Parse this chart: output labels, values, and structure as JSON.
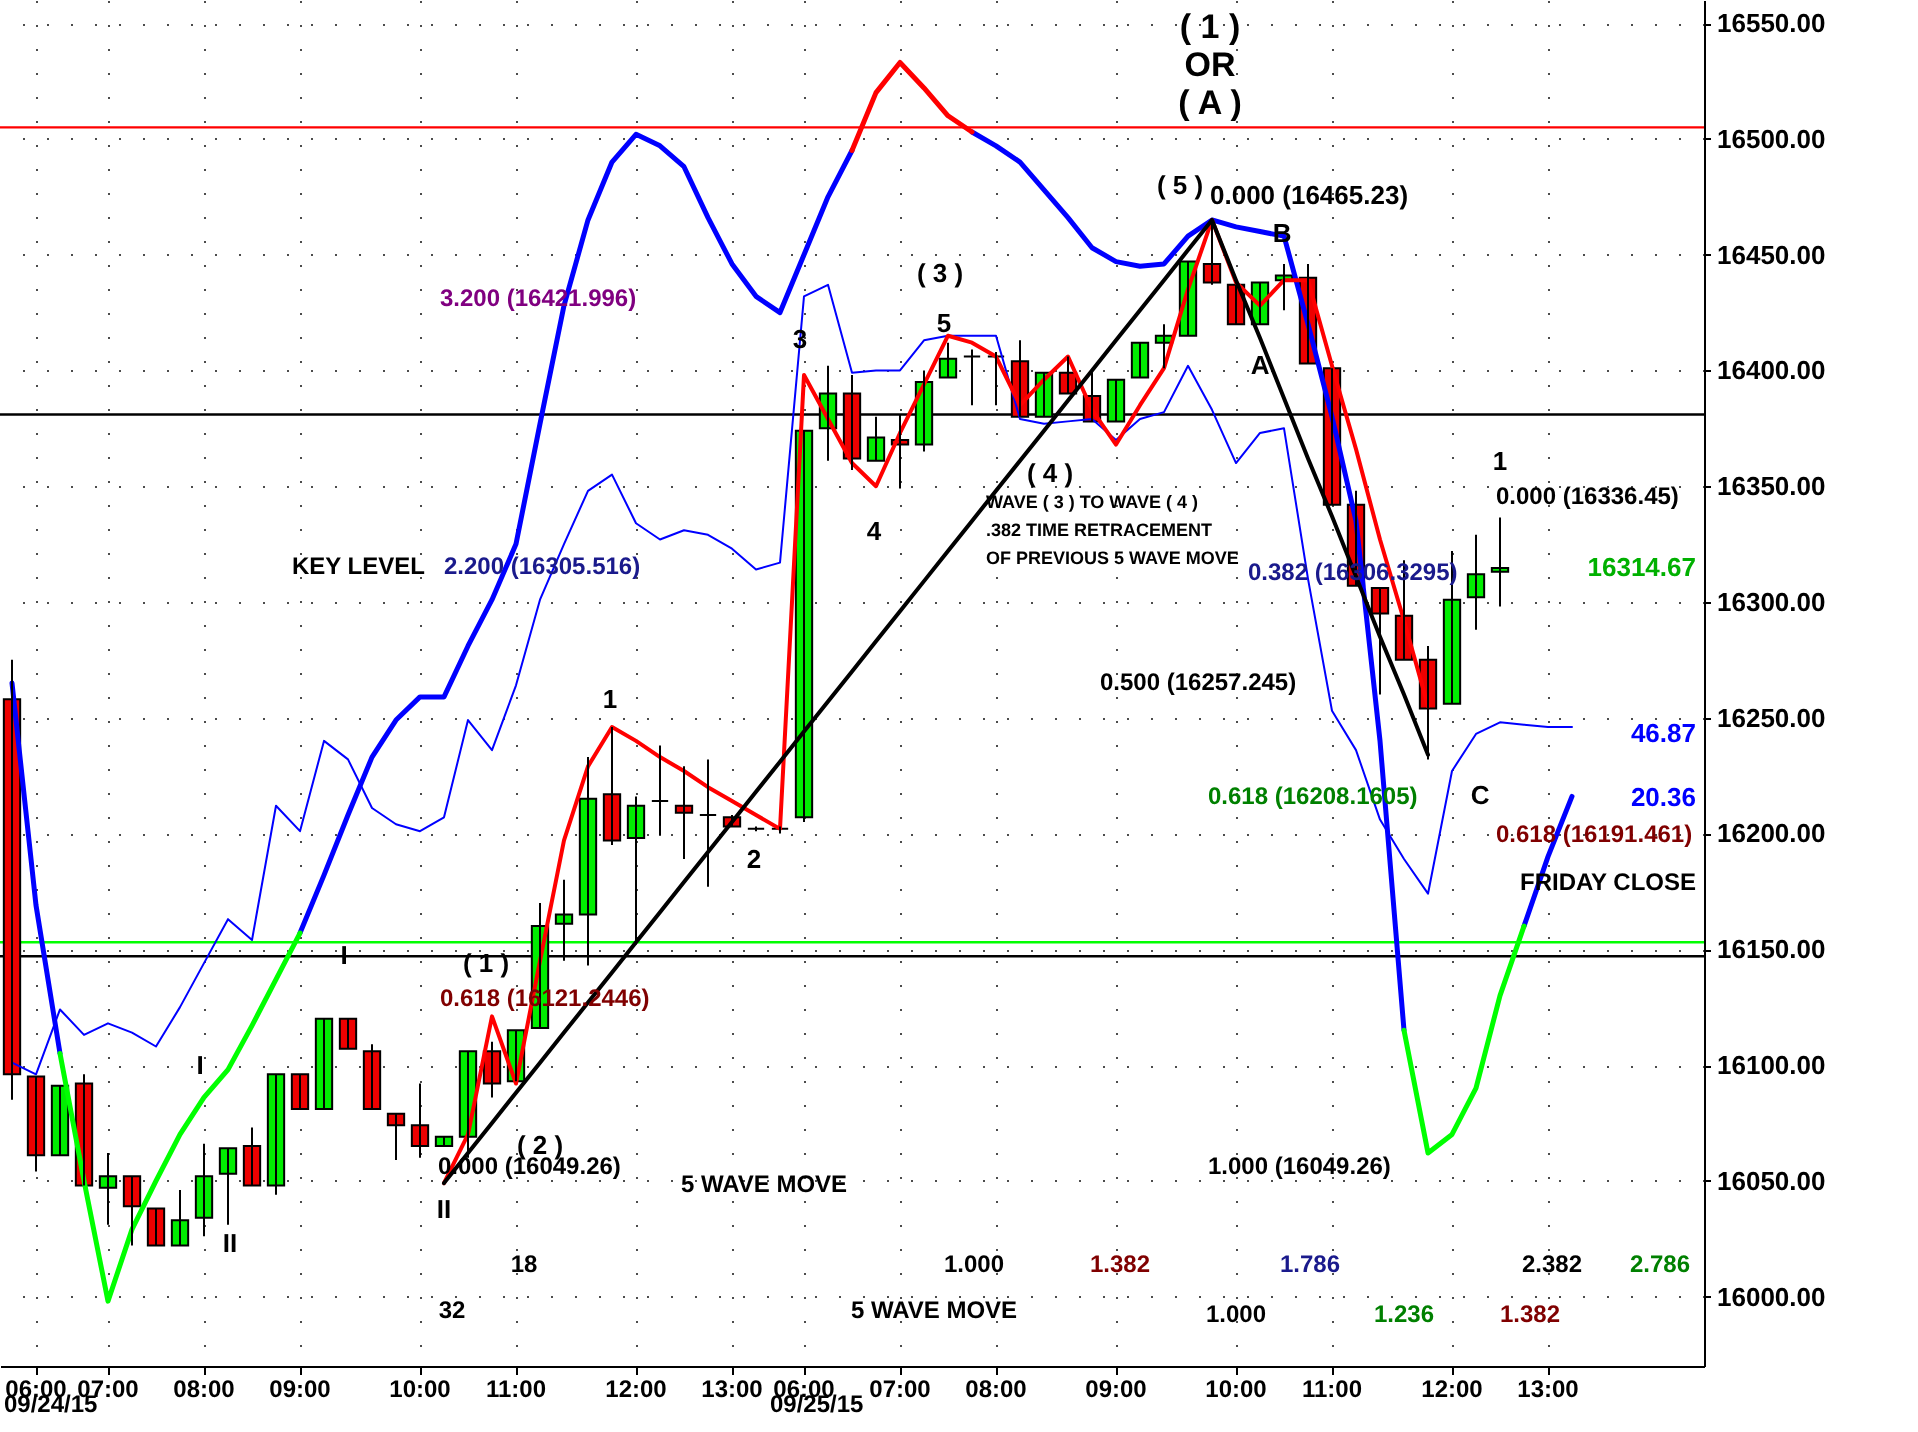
{
  "chart_data": {
    "type": "candlestick",
    "categories": [
      null,
      "06:00",
      null,
      null,
      "07:00",
      null,
      null,
      null,
      "08:00",
      null,
      null,
      null,
      "09:00",
      null,
      null,
      null,
      null,
      "10:00",
      null,
      null,
      null,
      "11:00",
      null,
      null,
      null,
      null,
      "12:00",
      null,
      null,
      null,
      "13:00",
      null,
      null,
      "06:00",
      null,
      null,
      null,
      "07:00",
      null,
      null,
      null,
      "08:00",
      null,
      null,
      null,
      null,
      "09:00",
      null,
      null,
      null,
      null,
      "10:00",
      null,
      null,
      null,
      "11:00",
      null,
      null,
      null,
      null,
      "12:00",
      null,
      null,
      null,
      "13:00",
      null,
      null,
      null,
      null,
      null,
      null
    ],
    "ohlc": [
      [
        16258,
        16275,
        16085,
        16096
      ],
      [
        16095,
        16095,
        16054,
        16061
      ],
      [
        16061,
        16091,
        16061,
        16091
      ],
      [
        16092,
        16096,
        16048,
        16048
      ],
      [
        16047,
        16062,
        16031,
        16052
      ],
      [
        16052,
        16052,
        16022,
        16039
      ],
      [
        16038,
        16038,
        16022,
        16022
      ],
      [
        16022,
        16046,
        16022,
        16033
      ],
      [
        16034,
        16066,
        16026,
        16052
      ],
      [
        16053,
        16064,
        16031,
        16064
      ],
      [
        16065,
        16073,
        16048,
        16048
      ],
      [
        16048,
        16096,
        16044,
        16096
      ],
      [
        16096,
        16096,
        16081,
        16081
      ],
      [
        16081,
        16120,
        16081,
        16120
      ],
      [
        16120,
        16120,
        16107,
        16107
      ],
      [
        16106,
        16109,
        16081,
        16081
      ],
      [
        16079,
        16079,
        16059,
        16074
      ],
      [
        16074,
        16092,
        16060,
        16065
      ],
      [
        16065,
        16069,
        16065,
        16069
      ],
      [
        16069,
        16106,
        16060,
        16106
      ],
      [
        16106,
        16110,
        16086,
        16092
      ],
      [
        16093,
        16115,
        16093,
        16115
      ],
      [
        16116,
        16170,
        16116,
        16160
      ],
      [
        16161,
        16180,
        16145,
        16165
      ],
      [
        16165,
        16233,
        16143,
        16215
      ],
      [
        16217,
        16246,
        16195,
        16197
      ],
      [
        16198,
        16216,
        16152,
        16212
      ],
      [
        16214,
        16238,
        16199,
        16214
      ],
      [
        16212,
        16229,
        16189,
        16209
      ],
      [
        16208,
        16232,
        16177,
        16208
      ],
      [
        16207,
        16208,
        16203,
        16203
      ],
      [
        16202,
        16203,
        16201,
        16202
      ],
      [
        16202,
        16203,
        16200,
        16202
      ],
      [
        16207,
        16374,
        16205,
        16374
      ],
      [
        16375,
        16402,
        16361,
        16390
      ],
      [
        16390,
        16398,
        16357,
        16362
      ],
      [
        16361,
        16380,
        16361,
        16371
      ],
      [
        16370,
        16381,
        16349,
        16368
      ],
      [
        16368,
        16400,
        16365,
        16395
      ],
      [
        16397,
        16412,
        16397,
        16405
      ],
      [
        16406,
        16409,
        16385,
        16406
      ],
      [
        16406,
        16408,
        16385,
        16406
      ],
      [
        16404,
        16413,
        16380,
        16380
      ],
      [
        16380,
        16399,
        16380,
        16399
      ],
      [
        16399,
        16406,
        16390,
        16390
      ],
      [
        16389,
        16400,
        16378,
        16378
      ],
      [
        16378,
        16396,
        16378,
        16396
      ],
      [
        16397,
        16412,
        16397,
        16412
      ],
      [
        16412,
        16420,
        16401,
        16415
      ],
      [
        16415,
        16447,
        16415,
        16447
      ],
      [
        16446,
        16465.23,
        16437,
        16438
      ],
      [
        16437,
        16437,
        16420,
        16420
      ],
      [
        16420,
        16438,
        16420,
        16438
      ],
      [
        16439,
        16446,
        16426,
        16441
      ],
      [
        16440,
        16446,
        16403,
        16403
      ],
      [
        16401,
        16401,
        16342,
        16342
      ],
      [
        16342,
        16348,
        16307,
        16307
      ],
      [
        16306,
        16306,
        16260,
        16295
      ],
      [
        16294,
        16318,
        16275,
        16275
      ],
      [
        16275,
        16281,
        16232,
        16254
      ],
      [
        16256,
        16322,
        16256,
        16301
      ],
      [
        16302,
        16329,
        16288,
        16312
      ],
      [
        16313,
        16336.45,
        16298,
        16314.67
      ],
      null,
      null,
      null,
      null,
      null,
      null,
      null,
      null
    ],
    "series": [
      {
        "type": "line",
        "color": "#0000ff",
        "values": [
          16265,
          16169,
          16105,
          null,
          null,
          null,
          null,
          null,
          null,
          null,
          null,
          null,
          16157,
          16182,
          16208,
          16233,
          16249,
          16259,
          16259,
          16281,
          16301,
          16325,
          16377,
          16428,
          16465,
          16490,
          16502,
          16497,
          16488,
          16466,
          16446,
          16432,
          16425,
          16450,
          16475,
          16495,
          null,
          null,
          null,
          null,
          16503,
          16497,
          16490,
          16478,
          16466,
          16453,
          16447,
          16445,
          16446,
          16458,
          16465,
          16462,
          16460,
          16458,
          16420,
          16380,
          16335,
          16240,
          16115,
          null,
          null,
          null,
          null,
          16160,
          16190,
          16216,
          null,
          null,
          null,
          null,
          null
        ]
      },
      {
        "type": "line",
        "color": "#00ff00",
        "values": [
          null,
          null,
          16105,
          16050,
          15998,
          16029,
          16050,
          16070,
          16086,
          16098,
          16117,
          16137,
          16157,
          null,
          null,
          null,
          null,
          null,
          null,
          null,
          null,
          null,
          null,
          null,
          null,
          null,
          null,
          null,
          null,
          null,
          null,
          null,
          null,
          null,
          null,
          null,
          null,
          null,
          null,
          null,
          null,
          null,
          null,
          null,
          null,
          null,
          null,
          null,
          null,
          null,
          null,
          null,
          null,
          null,
          null,
          null,
          null,
          null,
          16115,
          16062,
          16070,
          16090,
          16130,
          16160,
          null,
          null,
          null,
          null,
          null,
          null,
          null
        ]
      },
      {
        "type": "line",
        "color": "#ff0000",
        "values": [
          null,
          null,
          null,
          null,
          null,
          null,
          null,
          null,
          null,
          null,
          null,
          null,
          null,
          null,
          null,
          null,
          null,
          null,
          null,
          null,
          null,
          null,
          null,
          null,
          null,
          null,
          null,
          null,
          null,
          null,
          null,
          null,
          null,
          null,
          null,
          16495,
          16520,
          16533,
          16522,
          16510,
          16503,
          null,
          null,
          null,
          null,
          null,
          null,
          null,
          null,
          null,
          null,
          null,
          null,
          null,
          null,
          null,
          null,
          null,
          null,
          null,
          null,
          null,
          null,
          null,
          null,
          null,
          null,
          null,
          null,
          null,
          null
        ]
      },
      {
        "type": "line",
        "color": "#0000ff",
        "values": [
          16101,
          16096,
          16124,
          16113,
          16118,
          16114,
          16108,
          16125,
          16144,
          16163,
          16154,
          16212,
          16201,
          16240,
          16232,
          16211,
          16204,
          16201,
          16207,
          16249,
          16236,
          16264,
          16301,
          16325,
          16348,
          16355,
          16334,
          16327,
          16331,
          16329,
          16323,
          16314,
          16317,
          16432,
          16437,
          16399,
          16400,
          16400,
          16413,
          16415,
          16415,
          16415,
          16379,
          16377,
          16378,
          16379,
          16370,
          16379,
          16382,
          16402,
          16383,
          16360,
          16373,
          16375,
          16310,
          16253,
          16236,
          16206,
          16189,
          16174,
          16227,
          16243,
          16248,
          16247,
          16246,
          16246,
          null,
          null,
          null,
          null,
          null
        ]
      },
      {
        "type": "line",
        "color": "#ff0000",
        "values": [
          null,
          null,
          null,
          null,
          null,
          null,
          null,
          null,
          null,
          null,
          null,
          null,
          null,
          null,
          null,
          null,
          null,
          null,
          16049,
          16070,
          16121,
          16092,
          16145,
          16197,
          16229,
          16246,
          16240,
          16233,
          16227,
          16220,
          16214,
          16208,
          16202,
          16398,
          16379,
          16360,
          16350,
          16373,
          16394,
          16415,
          16412,
          16406,
          16385,
          16396,
          16406,
          16383,
          16368,
          16385,
          16401,
          16435,
          16465,
          16438,
          16428,
          16439,
          16439,
          16402,
          16366,
          16327,
          16292,
          16255,
          null,
          null,
          null,
          null,
          null,
          null,
          null,
          null,
          null,
          null,
          null
        ]
      },
      {
        "type": "line",
        "color": "#000000",
        "values": [
          null,
          null,
          null,
          null,
          null,
          null,
          null,
          null,
          null,
          null,
          null,
          null,
          null,
          null,
          null,
          null,
          null,
          null,
          16049,
          16062,
          16075,
          16088,
          16101,
          16114,
          16127,
          16140,
          16153,
          16166,
          16179,
          16192,
          16205,
          16218,
          16231,
          16244,
          16257,
          16270,
          16283,
          16296,
          16309,
          16322,
          16335,
          16348,
          16361,
          16374,
          16387,
          16400,
          16413,
          16426,
          16439,
          16452,
          16465,
          16439,
          16414,
          16388,
          16362,
          16337,
          16311,
          16285,
          16260,
          16234,
          null,
          null,
          null,
          null,
          null,
          null,
          null,
          null,
          null,
          null,
          null
        ]
      }
    ],
    "ylim": [
      15970,
      16560
    ],
    "yticks": [
      {
        "value": 16000,
        "label": "16000.00"
      },
      {
        "value": 16050,
        "label": "16050.00"
      },
      {
        "value": 16100,
        "label": "16100.00"
      },
      {
        "value": 16150,
        "label": "16150.00"
      },
      {
        "value": 16200,
        "label": "16200.00"
      },
      {
        "value": 16250,
        "label": "16250.00"
      },
      {
        "value": 16300,
        "label": "16300.00"
      },
      {
        "value": 16350,
        "label": "16350.00"
      },
      {
        "value": 16400,
        "label": "16400.00"
      },
      {
        "value": 16450,
        "label": "16450.00"
      },
      {
        "value": 16500,
        "label": "16500.00"
      },
      {
        "value": 16550,
        "label": "16550.00"
      }
    ],
    "ref_lines": [
      {
        "axis": "y",
        "value": 16505,
        "color": "#ff0000"
      },
      {
        "axis": "y",
        "value": 16381,
        "color": "#000000"
      },
      {
        "axis": "y",
        "value": 16153,
        "color": "#00ff00"
      },
      {
        "axis": "y",
        "value": 16147,
        "color": "#000000"
      }
    ],
    "grid": true,
    "annotations": [
      "( 1 )",
      "OR",
      "( A )",
      "( 5 )",
      "0.000 (16465.23)",
      "B",
      "A",
      "( 3 )",
      "5",
      "3",
      "4",
      "( 4 )",
      "WAVE ( 3 ) TO WAVE ( 4 )",
      ".382 TIME RETRACEMENT",
      "OF PREVIOUS 5 WAVE MOVE",
      "3.200 (16421.996)",
      "KEY LEVEL",
      "2.200 (16305.516)",
      "0.382 (16306.3295)",
      "1",
      "0.000 (16336.45)",
      "0.500 (16257.245)",
      "0.618 (16208.1605)",
      "C",
      "0.618 (16191.461)",
      "FRIDAY CLOSE",
      "1",
      "2",
      "I",
      "I",
      "II",
      "II",
      "( 1 )",
      "0.618 (16121.2446)",
      "( 2 )",
      "0.000 (16049.26)",
      "5 WAVE MOVE",
      "5 WAVE MOVE",
      "18",
      "32",
      "1.000",
      "1.382",
      "1.000 (16049.26)",
      "1.786",
      "2.382",
      "2.786",
      "1.000",
      "1.236",
      "1.382",
      "16314.67",
      "46.87",
      "20.36",
      "09/24/15",
      "09/25/15"
    ]
  }
}
